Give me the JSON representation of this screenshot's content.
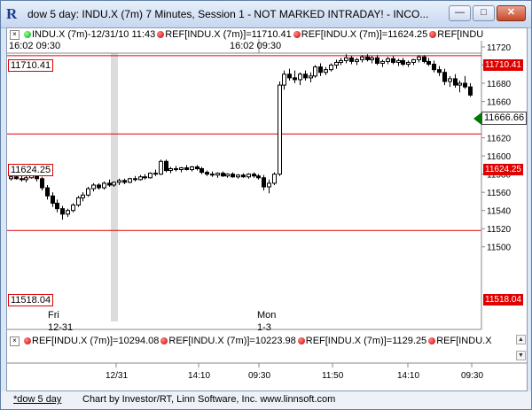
{
  "window": {
    "title": "dow 5 day: INDU.X (7m) 7 Minutes, Session 1 - NOT MARKED INTRADAY! - INCO...",
    "minimize": "—",
    "maximize": "□",
    "close": "✕",
    "app_icon_glyph": "R"
  },
  "top_legend": {
    "time_label": "16:02  09:30",
    "symbol": "INDU.X (7m)-12/31/10 11:43",
    "ref1": "REF[INDU.X (7m)]=11710.41",
    "ref2": "REF[INDU.X (7m)]=11624.25",
    "ref3": "REF[INDU"
  },
  "second_legend": {
    "time_label": "16:02  09:30"
  },
  "price_axis": {
    "ticks": [
      "11720",
      "11700",
      "11680",
      "11660",
      "11640",
      "11620",
      "11600",
      "11580",
      "11560",
      "11540",
      "11520",
      "11500"
    ],
    "current_price": "11666.66",
    "ref_labels_right": [
      "11710.41",
      "11624.25",
      "11518.04"
    ]
  },
  "ref_lines_left": [
    "11710.41",
    "11624.25",
    "11518.04"
  ],
  "day_labels": [
    {
      "day": "Fri",
      "date": "12-31"
    },
    {
      "day": "Mon",
      "date": "1-3"
    }
  ],
  "bottom_legend": {
    "ref1": "REF[INDU.X (7m)]=10294.08",
    "ref2": "REF[INDU.X (7m)]=10223.98",
    "ref3": "REF[INDU.X (7m)]=1129.25",
    "ref4": "REF[INDU.X"
  },
  "time_axis": {
    "ticks": [
      "12/31",
      "14:10",
      "09:30",
      "11:50",
      "14:10",
      "09:30"
    ]
  },
  "status": {
    "tab": "*dow 5 day",
    "credit": "Chart by Investor/RT, Linn Software, Inc. www.linnsoft.com"
  },
  "colors": {
    "ref_line": "#e00000",
    "current_price_bg": "#007a00",
    "candle": "#000000",
    "session_band": "#dcdcdc"
  },
  "chart_data": {
    "type": "candlestick",
    "symbol": "INDU.X (7m)",
    "ylim": [
      11500,
      11725
    ],
    "reference_lines": [
      11710.41,
      11624.25,
      11518.04
    ],
    "current_price": 11666.66,
    "candles": [
      {
        "open": 11575,
        "high": 11580,
        "low": 11573,
        "close": 11577
      },
      {
        "open": 11577,
        "high": 11579,
        "low": 11574,
        "close": 11575
      },
      {
        "open": 11575,
        "high": 11578,
        "low": 11572,
        "close": 11574
      },
      {
        "open": 11574,
        "high": 11578,
        "low": 11571,
        "close": 11576
      },
      {
        "open": 11576,
        "high": 11588,
        "low": 11575,
        "close": 11585
      },
      {
        "open": 11585,
        "high": 11587,
        "low": 11572,
        "close": 11575
      },
      {
        "open": 11575,
        "high": 11577,
        "low": 11562,
        "close": 11565
      },
      {
        "open": 11565,
        "high": 11568,
        "low": 11552,
        "close": 11556
      },
      {
        "open": 11556,
        "high": 11560,
        "low": 11544,
        "close": 11548
      },
      {
        "open": 11548,
        "high": 11552,
        "low": 11538,
        "close": 11542
      },
      {
        "open": 11542,
        "high": 11545,
        "low": 11530,
        "close": 11536
      },
      {
        "open": 11536,
        "high": 11542,
        "low": 11533,
        "close": 11540
      },
      {
        "open": 11540,
        "high": 11548,
        "low": 11538,
        "close": 11546
      },
      {
        "open": 11546,
        "high": 11556,
        "low": 11544,
        "close": 11554
      },
      {
        "open": 11554,
        "high": 11560,
        "low": 11550,
        "close": 11557
      },
      {
        "open": 11557,
        "high": 11566,
        "low": 11555,
        "close": 11564
      },
      {
        "open": 11564,
        "high": 11570,
        "low": 11561,
        "close": 11568
      },
      {
        "open": 11568,
        "high": 11570,
        "low": 11563,
        "close": 11565
      },
      {
        "open": 11565,
        "high": 11572,
        "low": 11563,
        "close": 11570
      },
      {
        "open": 11570,
        "high": 11574,
        "low": 11566,
        "close": 11568
      },
      {
        "open": 11568,
        "high": 11572,
        "low": 11566,
        "close": 11571
      },
      {
        "open": 11571,
        "high": 11575,
        "low": 11568,
        "close": 11573
      },
      {
        "open": 11573,
        "high": 11575,
        "low": 11569,
        "close": 11571
      },
      {
        "open": 11571,
        "high": 11576,
        "low": 11570,
        "close": 11575
      },
      {
        "open": 11575,
        "high": 11578,
        "low": 11572,
        "close": 11574
      },
      {
        "open": 11574,
        "high": 11579,
        "low": 11573,
        "close": 11577
      },
      {
        "open": 11577,
        "high": 11580,
        "low": 11574,
        "close": 11576
      },
      {
        "open": 11576,
        "high": 11582,
        "low": 11575,
        "close": 11581
      },
      {
        "open": 11581,
        "high": 11585,
        "low": 11578,
        "close": 11580
      },
      {
        "open": 11580,
        "high": 11596,
        "low": 11579,
        "close": 11594
      },
      {
        "open": 11594,
        "high": 11596,
        "low": 11582,
        "close": 11584
      },
      {
        "open": 11584,
        "high": 11588,
        "low": 11581,
        "close": 11586
      },
      {
        "open": 11586,
        "high": 11589,
        "low": 11583,
        "close": 11585
      },
      {
        "open": 11585,
        "high": 11588,
        "low": 11582,
        "close": 11587
      },
      {
        "open": 11587,
        "high": 11590,
        "low": 11584,
        "close": 11585
      },
      {
        "open": 11585,
        "high": 11589,
        "low": 11583,
        "close": 11588
      },
      {
        "open": 11588,
        "high": 11590,
        "low": 11584,
        "close": 11586
      },
      {
        "open": 11586,
        "high": 11588,
        "low": 11580,
        "close": 11582
      },
      {
        "open": 11582,
        "high": 11584,
        "low": 11578,
        "close": 11580
      },
      {
        "open": 11580,
        "high": 11583,
        "low": 11577,
        "close": 11579
      },
      {
        "open": 11579,
        "high": 11582,
        "low": 11576,
        "close": 11581
      },
      {
        "open": 11581,
        "high": 11583,
        "low": 11577,
        "close": 11578
      },
      {
        "open": 11578,
        "high": 11581,
        "low": 11576,
        "close": 11580
      },
      {
        "open": 11580,
        "high": 11582,
        "low": 11576,
        "close": 11577
      },
      {
        "open": 11577,
        "high": 11580,
        "low": 11575,
        "close": 11579
      },
      {
        "open": 11579,
        "high": 11581,
        "low": 11576,
        "close": 11577
      },
      {
        "open": 11577,
        "high": 11581,
        "low": 11575,
        "close": 11580
      },
      {
        "open": 11580,
        "high": 11582,
        "low": 11576,
        "close": 11578
      },
      {
        "open": 11578,
        "high": 11580,
        "low": 11574,
        "close": 11576
      },
      {
        "open": 11576,
        "high": 11579,
        "low": 11562,
        "close": 11566
      },
      {
        "open": 11566,
        "high": 11574,
        "low": 11559,
        "close": 11570
      },
      {
        "open": 11570,
        "high": 11582,
        "low": 11568,
        "close": 11580
      },
      {
        "open": 11580,
        "high": 11682,
        "low": 11578,
        "close": 11678
      },
      {
        "open": 11678,
        "high": 11694,
        "low": 11673,
        "close": 11690
      },
      {
        "open": 11690,
        "high": 11696,
        "low": 11683,
        "close": 11686
      },
      {
        "open": 11686,
        "high": 11694,
        "low": 11680,
        "close": 11684
      },
      {
        "open": 11684,
        "high": 11692,
        "low": 11678,
        "close": 11690
      },
      {
        "open": 11690,
        "high": 11694,
        "low": 11683,
        "close": 11686
      },
      {
        "open": 11686,
        "high": 11692,
        "low": 11681,
        "close": 11688
      },
      {
        "open": 11688,
        "high": 11700,
        "low": 11686,
        "close": 11698
      },
      {
        "open": 11698,
        "high": 11702,
        "low": 11688,
        "close": 11692
      },
      {
        "open": 11692,
        "high": 11698,
        "low": 11689,
        "close": 11695
      },
      {
        "open": 11695,
        "high": 11702,
        "low": 11693,
        "close": 11700
      },
      {
        "open": 11700,
        "high": 11706,
        "low": 11696,
        "close": 11703
      },
      {
        "open": 11703,
        "high": 11708,
        "low": 11700,
        "close": 11705
      },
      {
        "open": 11705,
        "high": 11712,
        "low": 11702,
        "close": 11708
      },
      {
        "open": 11708,
        "high": 11710,
        "low": 11701,
        "close": 11704
      },
      {
        "open": 11704,
        "high": 11708,
        "low": 11700,
        "close": 11706
      },
      {
        "open": 11706,
        "high": 11711,
        "low": 11703,
        "close": 11709
      },
      {
        "open": 11709,
        "high": 11712,
        "low": 11704,
        "close": 11706
      },
      {
        "open": 11706,
        "high": 11710,
        "low": 11702,
        "close": 11708
      },
      {
        "open": 11708,
        "high": 11711,
        "low": 11700,
        "close": 11702
      },
      {
        "open": 11702,
        "high": 11706,
        "low": 11698,
        "close": 11704
      },
      {
        "open": 11704,
        "high": 11709,
        "low": 11701,
        "close": 11707
      },
      {
        "open": 11707,
        "high": 11710,
        "low": 11701,
        "close": 11703
      },
      {
        "open": 11703,
        "high": 11707,
        "low": 11699,
        "close": 11705
      },
      {
        "open": 11705,
        "high": 11708,
        "low": 11699,
        "close": 11701
      },
      {
        "open": 11701,
        "high": 11705,
        "low": 11698,
        "close": 11703
      },
      {
        "open": 11703,
        "high": 11707,
        "low": 11700,
        "close": 11706
      },
      {
        "open": 11706,
        "high": 11711,
        "low": 11703,
        "close": 11709
      },
      {
        "open": 11709,
        "high": 11711,
        "low": 11702,
        "close": 11704
      },
      {
        "open": 11704,
        "high": 11708,
        "low": 11699,
        "close": 11701
      },
      {
        "open": 11701,
        "high": 11705,
        "low": 11692,
        "close": 11695
      },
      {
        "open": 11695,
        "high": 11699,
        "low": 11688,
        "close": 11692
      },
      {
        "open": 11692,
        "high": 11696,
        "low": 11678,
        "close": 11682
      },
      {
        "open": 11682,
        "high": 11688,
        "low": 11676,
        "close": 11685
      },
      {
        "open": 11685,
        "high": 11690,
        "low": 11675,
        "close": 11678
      },
      {
        "open": 11678,
        "high": 11683,
        "low": 11670,
        "close": 11680
      },
      {
        "open": 11680,
        "high": 11688,
        "low": 11674,
        "close": 11676
      },
      {
        "open": 11676,
        "high": 11680,
        "low": 11665,
        "close": 11667
      }
    ]
  }
}
